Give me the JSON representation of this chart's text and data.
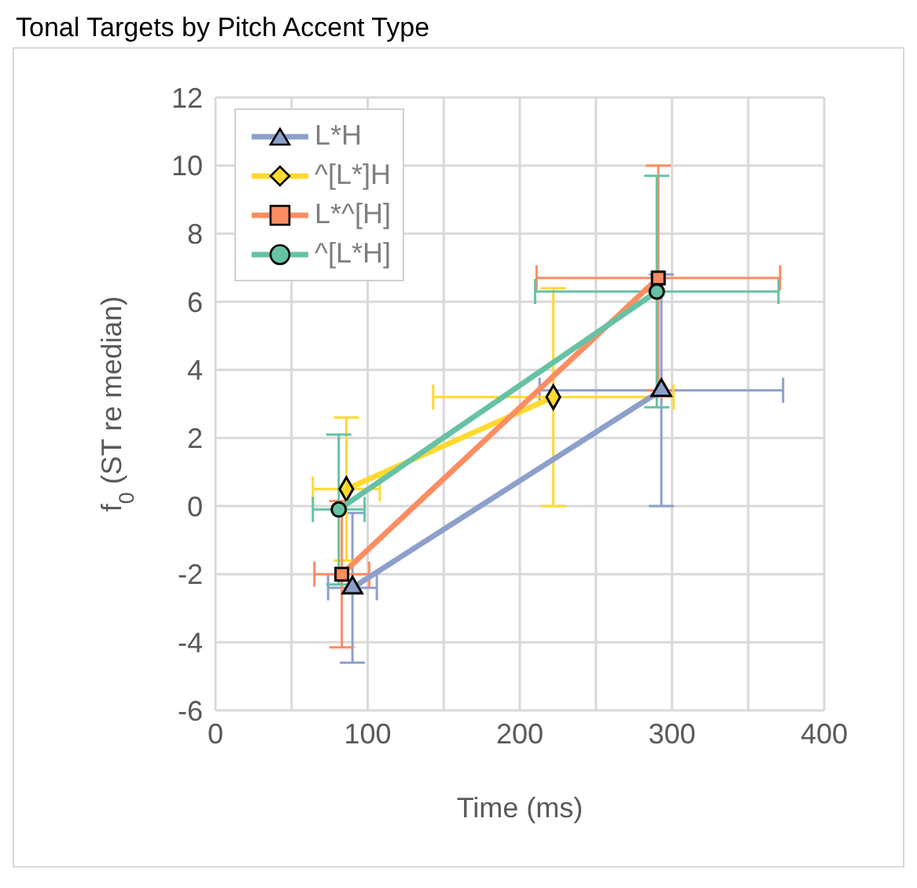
{
  "chart_data": {
    "type": "line",
    "title": "Tonal Targets by Pitch Accent Type",
    "xlabel": "Time (ms)",
    "ylabel": "f$_{0}$ (ST re median)",
    "xlim": [
      0,
      400
    ],
    "xticks": [
      0,
      {
        "value": 50,
        "label": null
      },
      100,
      {
        "value": 150,
        "label": null
      },
      200,
      {
        "value": 250,
        "label": null
      },
      300,
      {
        "value": 350,
        "label": null
      },
      400
    ],
    "ylim": [
      -6,
      12
    ],
    "yticks": [
      -6,
      -4,
      -2,
      0,
      2,
      4,
      6,
      8,
      10,
      12
    ],
    "grid": true,
    "legend": "top left",
    "series": [
      {
        "name": "L*H",
        "color": "#8da0cb",
        "marker": "triangle",
        "x": [
          90,
          293
        ],
        "values": [
          -2.4,
          3.4
        ],
        "errors": [
          2.2,
          3.4
        ],
        "xerrors": [
          16,
          80
        ]
      },
      {
        "name": "^[L*]H",
        "color": "#ffd92f",
        "marker": "diamond",
        "x": [
          86,
          222
        ],
        "values": [
          0.5,
          3.2
        ],
        "errors": [
          2.1,
          3.2
        ],
        "xerrors": [
          22,
          79
        ]
      },
      {
        "name": "L*^[H]",
        "color": "#fc8d62",
        "marker": "square",
        "x": [
          83,
          291
        ],
        "values": [
          -2.0,
          6.7
        ],
        "errors": [
          2.15,
          3.3
        ],
        "xerrors": [
          18,
          80
        ]
      },
      {
        "name": "^[L*H]",
        "color": "#66c2a5",
        "marker": "circle",
        "x": [
          81,
          290
        ],
        "values": [
          -0.1,
          6.3
        ],
        "errors": [
          2.2,
          3.4
        ],
        "xerrors": [
          17,
          80
        ]
      }
    ]
  }
}
